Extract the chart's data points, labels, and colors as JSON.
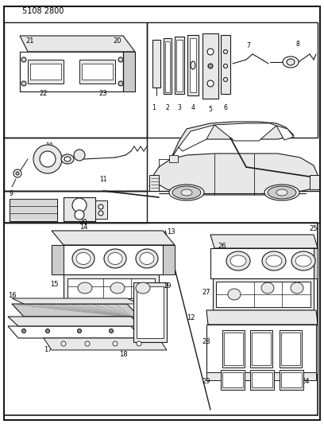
{
  "title": "5108 2800",
  "bg_color": "#ffffff",
  "line_color": "#1a1a1a",
  "fig_width": 4.08,
  "fig_height": 5.33,
  "dpi": 100
}
